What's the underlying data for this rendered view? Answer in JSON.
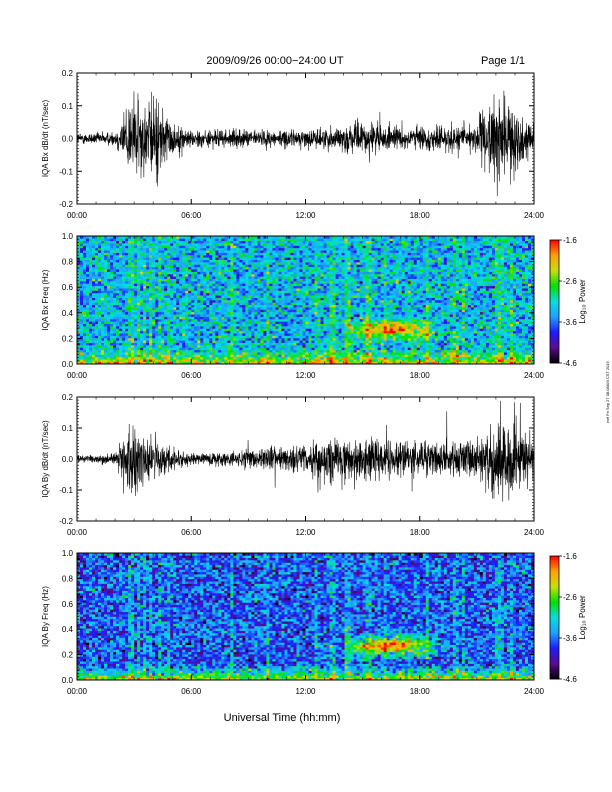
{
  "header": {
    "title": "2009/09/26  00:00−24:00 UT",
    "page": "Page 1/1"
  },
  "footer": {
    "xlabel": "Universal Time (hh:mm)"
  },
  "side_stamp": "mrf Fri Sep 27 08:08AM CST 2019",
  "colorbar": {
    "label": "Log₁₀ Power",
    "ticks": [
      "-1.6",
      "-2.6",
      "-3.6",
      "-4.6"
    ],
    "range": [
      -4.6,
      -1.6
    ],
    "colors": [
      "#000000",
      "#5a0a90",
      "#1c1cff",
      "#1ea0ff",
      "#00e0e0",
      "#00e000",
      "#c8e000",
      "#ffa000",
      "#ff0000"
    ]
  },
  "x_ticks": [
    "00:00",
    "06:00",
    "12:00",
    "18:00",
    "24:00"
  ],
  "chart_data": [
    {
      "type": "line",
      "ylabel": "IQA Bx dB/dt (nT/sec)",
      "xlim": [
        0,
        24
      ],
      "ylim": [
        -0.2,
        0.2
      ],
      "yticks": [
        "0.2",
        "0.1",
        "0.0",
        "-0.1",
        "-0.2"
      ],
      "x_ticklabels": [
        "00:00",
        "06:00",
        "12:00",
        "18:00",
        "24:00"
      ],
      "series": [
        {
          "x": [
            0,
            1,
            2,
            2.9,
            3.5,
            4.2,
            5,
            6,
            8,
            10,
            12,
            13.5,
            15.5,
            16.5,
            18,
            20,
            21,
            22,
            22.7,
            24
          ],
          "upper": [
            0.02,
            0.02,
            0.025,
            0.17,
            0.12,
            0.15,
            0.05,
            0.03,
            0.03,
            0.03,
            0.03,
            0.04,
            0.06,
            0.04,
            0.04,
            0.05,
            0.06,
            0.15,
            0.12,
            0.05
          ],
          "lower": [
            -0.02,
            -0.02,
            -0.025,
            -0.14,
            -0.12,
            -0.16,
            -0.06,
            -0.03,
            -0.03,
            -0.03,
            -0.03,
            -0.04,
            -0.06,
            -0.04,
            -0.04,
            -0.05,
            -0.06,
            -0.16,
            -0.13,
            -0.05
          ]
        }
      ]
    },
    {
      "type": "heatmap",
      "ylabel": "IQA Bx Freq (Hz)",
      "xlim": [
        0,
        24
      ],
      "ylim": [
        0.0,
        1.0
      ],
      "yticks": [
        "1.0",
        "0.8",
        "0.6",
        "0.4",
        "0.2",
        "0.0"
      ],
      "x_ticklabels": [
        "00:00",
        "06:00",
        "12:00",
        "18:00",
        "24:00"
      ],
      "zlim": [
        -4.6,
        -1.6
      ],
      "background": -3.3,
      "features": {
        "vertical_lines_hours": [
          2.75,
          2.9,
          3.3,
          3.6,
          3.9,
          4.3,
          4.8,
          8.1,
          10.0,
          12.6,
          13.3,
          13.45,
          14.2,
          15.3,
          16.2,
          18.4,
          19.9,
          20.3,
          22.1,
          22.4,
          22.8
        ],
        "emission": {
          "t_start": 14,
          "t_end": 19,
          "f_center": 0.27,
          "peak": -2.0
        },
        "low_freq_peak": -1.9
      }
    },
    {
      "type": "line",
      "ylabel": "IQA By dB/dt (nT/sec)",
      "xlim": [
        0,
        24
      ],
      "ylim": [
        -0.2,
        0.2
      ],
      "yticks": [
        "0.2",
        "0.1",
        "0.0",
        "-0.1",
        "-0.2"
      ],
      "x_ticklabels": [
        "00:00",
        "06:00",
        "12:00",
        "18:00",
        "24:00"
      ],
      "series": [
        {
          "x": [
            0,
            1,
            2,
            2.9,
            3.5,
            4.2,
            5,
            6,
            8,
            10,
            12,
            13.5,
            15.5,
            16.5,
            18,
            20,
            21,
            22,
            22.7,
            24
          ],
          "upper": [
            0.015,
            0.015,
            0.02,
            0.14,
            0.08,
            0.07,
            0.04,
            0.02,
            0.03,
            0.04,
            0.05,
            0.07,
            0.08,
            0.07,
            0.06,
            0.07,
            0.08,
            0.14,
            0.18,
            0.06
          ],
          "lower": [
            -0.015,
            -0.015,
            -0.02,
            -0.18,
            -0.1,
            -0.07,
            -0.04,
            -0.02,
            -0.03,
            -0.04,
            -0.05,
            -0.12,
            -0.08,
            -0.07,
            -0.06,
            -0.07,
            -0.08,
            -0.14,
            -0.15,
            -0.06
          ]
        }
      ]
    },
    {
      "type": "heatmap",
      "ylabel": "IQA By Freq (Hz)",
      "xlim": [
        0,
        24
      ],
      "ylim": [
        0.0,
        1.0
      ],
      "yticks": [
        "1.0",
        "0.8",
        "0.6",
        "0.4",
        "0.2",
        "0.0"
      ],
      "x_ticklabels": [
        "00:00",
        "06:00",
        "12:00",
        "18:00",
        "24:00"
      ],
      "zlim": [
        -4.6,
        -1.6
      ],
      "background": -3.7,
      "features": {
        "vertical_lines_hours": [
          2.75,
          2.9,
          3.3,
          3.6,
          3.9,
          4.3,
          4.8,
          8.1,
          10.0,
          12.6,
          13.3,
          13.45,
          14.2,
          15.3,
          16.2,
          18.4,
          19.9,
          20.3,
          22.1,
          22.4,
          22.8
        ],
        "emission": {
          "t_start": 14,
          "t_end": 19,
          "f_center": 0.27,
          "peak": -1.9
        },
        "low_freq_peak": -2.0
      }
    }
  ]
}
